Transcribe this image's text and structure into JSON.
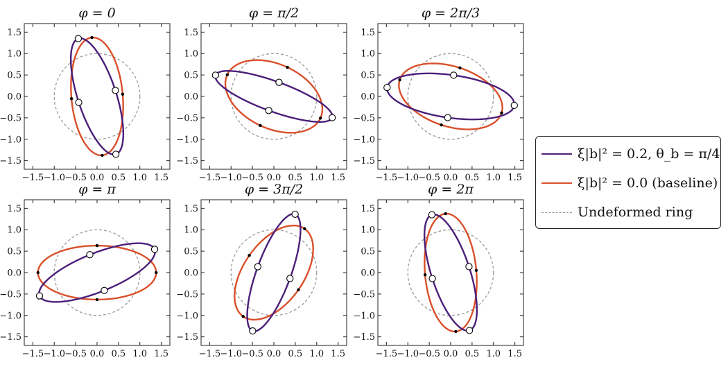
{
  "colors": {
    "purple": "#4b1f7a",
    "orange": "#d9502b",
    "ring": "#9a9a9a",
    "axis": "#222222"
  },
  "chart_data": {
    "type": "line",
    "xlim": [
      -1.7,
      1.7
    ],
    "ylim": [
      -1.7,
      1.7
    ],
    "xticks": [
      "−1.5",
      "−1.0",
      "−0.5",
      "0.0",
      "0.5",
      "1.0",
      "1.5"
    ],
    "yticks": [
      "1.5",
      "1.0",
      "0.5",
      "0.0",
      "−0.5",
      "−1.0",
      "−1.5"
    ],
    "grid": false,
    "legend_position": "right",
    "legend": [
      {
        "label": "ξ|b|² = 0.2,  θ_b = π/4",
        "color": "#4b1f7a",
        "style": "solid"
      },
      {
        "label": "ξ|b|² = 0.0 (baseline)",
        "color": "#d9502b",
        "style": "solid"
      },
      {
        "label": "Undeformed ring",
        "color": "#9a9a9a",
        "style": "dashed"
      }
    ],
    "panels": [
      {
        "title": "φ = 0",
        "purple": {
          "a": 1.42,
          "b": 0.45,
          "tilt_deg": 108,
          "open_markers_at_deg": [
            0,
            90,
            180,
            270
          ]
        },
        "orange": {
          "a": 1.38,
          "b": 0.6,
          "tilt_deg": 95,
          "dot_markers_at_deg": [
            0,
            90,
            180,
            270
          ]
        }
      },
      {
        "title": "φ = π/2",
        "purple": {
          "a": 1.45,
          "b": 0.35,
          "tilt_deg": -20,
          "open_markers_at_deg": [
            0,
            90,
            180,
            270
          ]
        },
        "orange": {
          "a": 1.2,
          "b": 0.75,
          "tilt_deg": -25,
          "dot_markers_at_deg": [
            0,
            90,
            180,
            270
          ]
        }
      },
      {
        "title": "φ = 2π/3",
        "purple": {
          "a": 1.5,
          "b": 0.5,
          "tilt_deg": -8,
          "open_markers_at_deg": [
            0,
            90,
            180,
            270
          ]
        },
        "orange": {
          "a": 1.25,
          "b": 0.7,
          "tilt_deg": -18,
          "dot_markers_at_deg": [
            0,
            90,
            180,
            270
          ]
        }
      },
      {
        "title": "φ = π",
        "purple": {
          "a": 1.45,
          "b": 0.45,
          "tilt_deg": 22,
          "open_markers_at_deg": [
            0,
            90,
            180,
            270
          ]
        },
        "orange": {
          "a": 1.38,
          "b": 0.63,
          "tilt_deg": 0,
          "dot_markers_at_deg": [
            0,
            90,
            180,
            270
          ]
        }
      },
      {
        "title": "φ = 3π/2",
        "purple": {
          "a": 1.45,
          "b": 0.4,
          "tilt_deg": 70,
          "open_markers_at_deg": [
            0,
            90,
            180,
            270
          ]
        },
        "orange": {
          "a": 1.25,
          "b": 0.7,
          "tilt_deg": 55,
          "dot_markers_at_deg": [
            0,
            90,
            180,
            270
          ]
        }
      },
      {
        "title": "φ = 2π",
        "purple": {
          "a": 1.42,
          "b": 0.45,
          "tilt_deg": 108,
          "open_markers_at_deg": [
            0,
            90,
            180,
            270
          ]
        },
        "orange": {
          "a": 1.38,
          "b": 0.6,
          "tilt_deg": 95,
          "dot_markers_at_deg": [
            0,
            90,
            180,
            270
          ]
        }
      }
    ]
  }
}
